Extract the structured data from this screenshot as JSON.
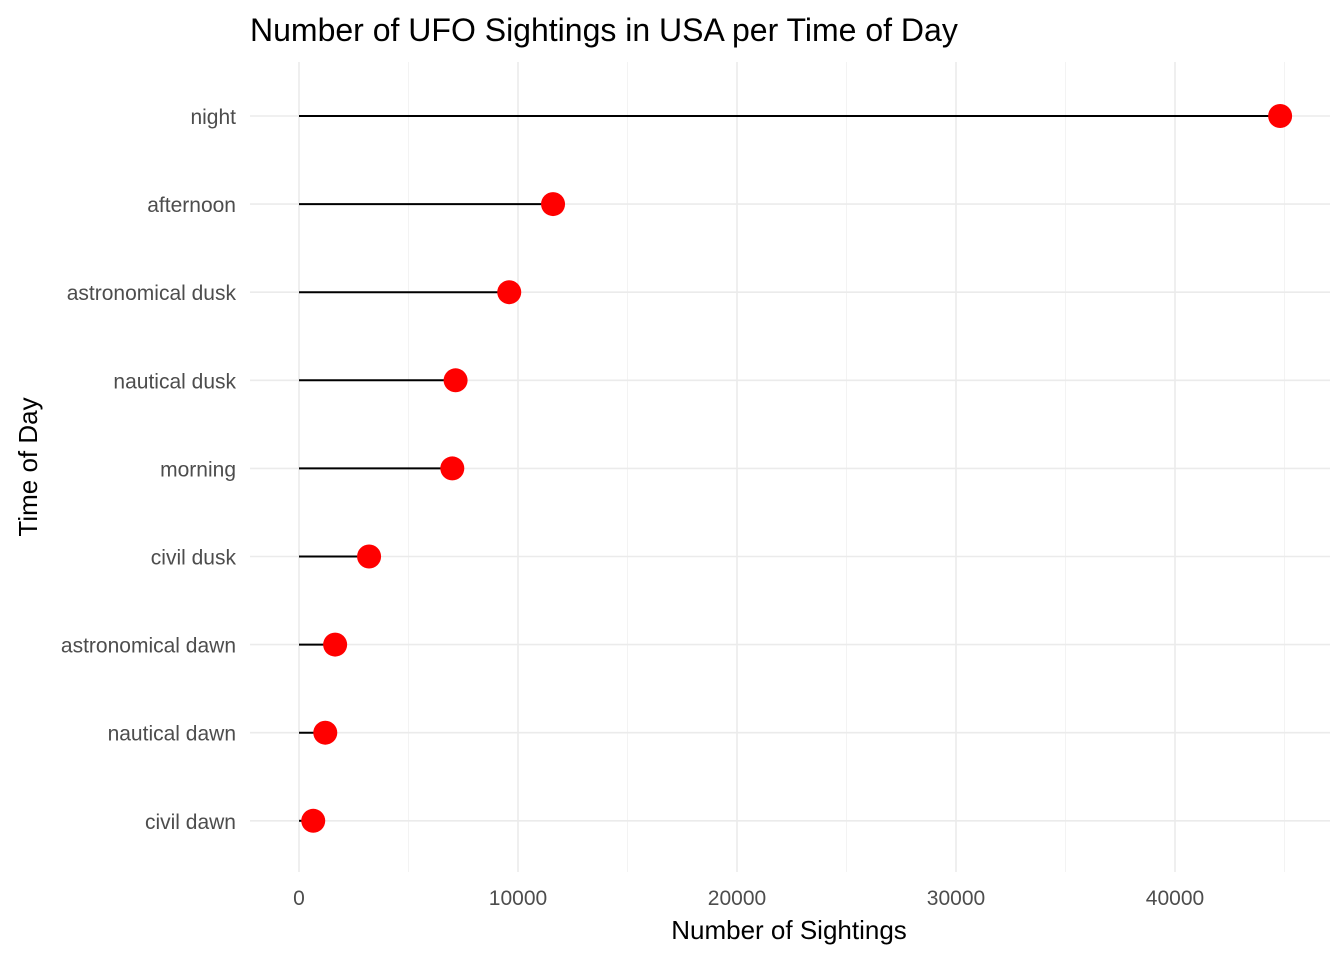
{
  "chart_data": {
    "type": "lollipop",
    "title": "Number of UFO Sightings in USA per Time of Day",
    "xlabel": "Number of Sightings",
    "ylabel": "Time of Day",
    "xlim": [
      -2500,
      47500
    ],
    "x_ticks": [
      0,
      10000,
      20000,
      30000,
      40000
    ],
    "x_tick_labels": [
      "0",
      "10000",
      "20000",
      "30000",
      "40000"
    ],
    "grid": true,
    "legend": "none",
    "colors": {
      "point": "#ff0000",
      "stem": "#000000",
      "grid": "#ebebeb",
      "tick_text": "#4d4d4d"
    },
    "categories": [
      "night",
      "afternoon",
      "astronomical dusk",
      "nautical dusk",
      "morning",
      "civil dusk",
      "astronomical dawn",
      "nautical dawn",
      "civil dawn"
    ],
    "values": [
      44800,
      11600,
      9600,
      7150,
      7000,
      3200,
      1650,
      1200,
      650
    ]
  }
}
